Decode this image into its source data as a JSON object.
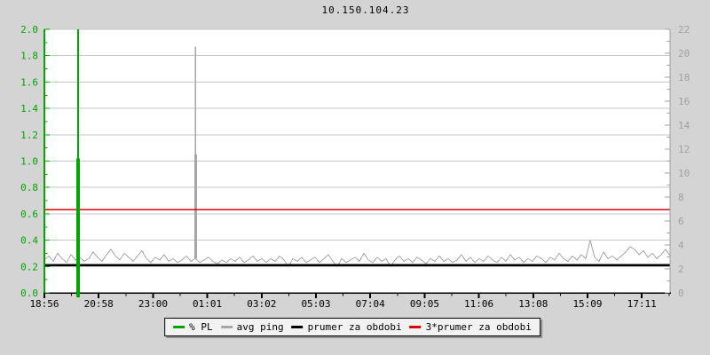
{
  "page": {
    "background": "#d4d4d4",
    "plot_background": "#ffffff",
    "grid_color": "#c6c6c6"
  },
  "header": {
    "title": "10.150.104.23"
  },
  "legend": {
    "items": [
      {
        "label": "% PL",
        "color": "#00a500"
      },
      {
        "label": "avg ping",
        "color": "#a6a6a6"
      },
      {
        "label": "prumer za obdobi",
        "color": "#000000"
      },
      {
        "label": "3*prumer za obdobi",
        "color": "#dd0000"
      }
    ]
  },
  "chart_data": {
    "type": "line",
    "title": "10.150.104.23",
    "x_tick_labels": [
      "18:56",
      "20:58",
      "23:00",
      "01:01",
      "03:02",
      "05:03",
      "07:04",
      "09:05",
      "11:06",
      "13:08",
      "15:09",
      "17:11"
    ],
    "x_label_color": "#000000",
    "left_axis": {
      "min": 0,
      "max": 2.0,
      "minor_step": 0.1,
      "color": "#00a500",
      "tick_labels": [
        "0.0",
        "0.2",
        "0.4",
        "0.6",
        "0.8",
        "1.0",
        "1.2",
        "1.4",
        "1.6",
        "1.8",
        "2.0"
      ]
    },
    "right_axis": {
      "min": 0,
      "max": 22,
      "minor_step": 1,
      "color": "#a0a0a0",
      "tick_labels": [
        "0",
        "2",
        "4",
        "6",
        "8",
        "10",
        "12",
        "14",
        "16",
        "18",
        "20",
        "22"
      ]
    },
    "axis_frame": {
      "bottom_color": "#000000"
    },
    "grid": true,
    "legend_position": "bottom-center",
    "series": [
      {
        "name": "avg ping",
        "type": "line",
        "color": "#a6a6a6",
        "values": [
          0.25,
          0.28,
          0.24,
          0.3,
          0.26,
          0.23,
          0.29,
          0.25,
          0.27,
          0.24,
          0.26,
          0.31,
          0.27,
          0.24,
          0.29,
          0.33,
          0.28,
          0.25,
          0.3,
          0.27,
          0.24,
          0.28,
          0.32,
          0.26,
          0.23,
          0.27,
          0.25,
          0.29,
          0.24,
          0.26,
          0.23,
          0.25,
          0.28,
          0.24,
          0.26,
          0.23,
          0.25,
          0.27,
          0.24,
          0.22,
          0.25,
          0.23,
          0.26,
          0.24,
          0.27,
          0.23,
          0.25,
          0.28,
          0.24,
          0.26,
          0.23,
          0.26,
          0.24,
          0.28,
          0.25,
          0.2,
          0.26,
          0.24,
          0.27,
          0.23,
          0.25,
          0.27,
          0.23,
          0.26,
          0.29,
          0.24,
          0.2,
          0.26,
          0.23,
          0.25,
          0.27,
          0.24,
          0.3,
          0.25,
          0.23,
          0.27,
          0.24,
          0.26,
          0.2,
          0.25,
          0.28,
          0.24,
          0.26,
          0.23,
          0.27,
          0.25,
          0.22,
          0.26,
          0.24,
          0.28,
          0.24,
          0.26,
          0.23,
          0.25,
          0.29,
          0.24,
          0.27,
          0.23,
          0.26,
          0.24,
          0.28,
          0.25,
          0.23,
          0.27,
          0.24,
          0.29,
          0.25,
          0.27,
          0.23,
          0.26,
          0.24,
          0.28,
          0.26,
          0.23,
          0.27,
          0.25,
          0.3,
          0.26,
          0.24,
          0.28,
          0.25,
          0.29,
          0.26,
          0.4,
          0.27,
          0.24,
          0.31,
          0.26,
          0.28,
          0.25,
          0.28,
          0.31,
          0.35,
          0.33,
          0.29,
          0.32,
          0.27,
          0.3,
          0.26,
          0.29,
          0.33,
          0.28
        ],
        "spikes": [
          {
            "x_frac": 0.2418,
            "from": 0.26,
            "to": 1.87,
            "width": 1.5
          },
          {
            "x_frac": 0.2418,
            "from": 0.26,
            "to": 1.05,
            "width": 3
          }
        ]
      },
      {
        "name": "prumer za obdobi",
        "type": "hline",
        "value": 0.21,
        "color": "#000000",
        "width": 2.5
      },
      {
        "name": "3*prumer za obdobi",
        "type": "hline",
        "value": 0.63,
        "color": "#dd0000",
        "width": 1.5
      },
      {
        "name": "% PL",
        "type": "vspike",
        "color": "#00a500",
        "spikes": [
          {
            "x_frac": 0.054,
            "from": -0.035,
            "to": 2.0,
            "width": 2
          },
          {
            "x_frac": 0.054,
            "from": -0.035,
            "to": 1.02,
            "width": 4
          }
        ]
      }
    ]
  }
}
